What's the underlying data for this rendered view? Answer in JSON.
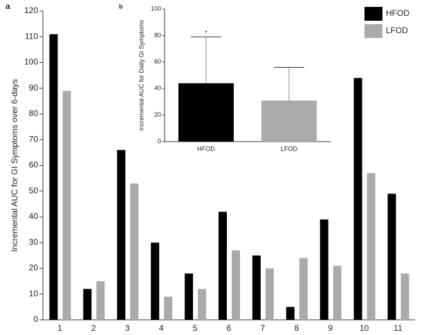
{
  "chart_data": [
    {
      "type": "grouped-bar",
      "panel_label": "a",
      "ylabel": "Incremental AUC for GI Symptoms over 6-days",
      "categories": [
        "1",
        "2",
        "3",
        "4",
        "5",
        "6",
        "7",
        "8",
        "9",
        "10",
        "11"
      ],
      "series": [
        {
          "name": "HFOD",
          "color": "#000000",
          "values": [
            111,
            12,
            66,
            30,
            18,
            42,
            25,
            5,
            39,
            94,
            49
          ]
        },
        {
          "name": "LFOD",
          "color": "#aaaaaa",
          "values": [
            89,
            15,
            53,
            9,
            12,
            27,
            20,
            24,
            21,
            57,
            18
          ]
        }
      ],
      "ylim": [
        0,
        120
      ],
      "yticks": [
        0,
        10,
        20,
        30,
        40,
        50,
        60,
        70,
        80,
        90,
        100,
        110,
        120
      ],
      "legend": "top-right"
    },
    {
      "type": "error-bar",
      "panel_label": "b",
      "ylabel": "Incremental AUC for Daily GI Symptoms",
      "categories": [
        "HFOD",
        "LFOD"
      ],
      "colors": [
        "#000000",
        "#aaaaaa"
      ],
      "values": [
        44,
        31
      ],
      "errors": [
        35,
        25
      ],
      "annotation": "*",
      "ylim": [
        0,
        100
      ],
      "yticks": [
        0,
        20,
        40,
        60,
        80,
        100
      ]
    }
  ]
}
